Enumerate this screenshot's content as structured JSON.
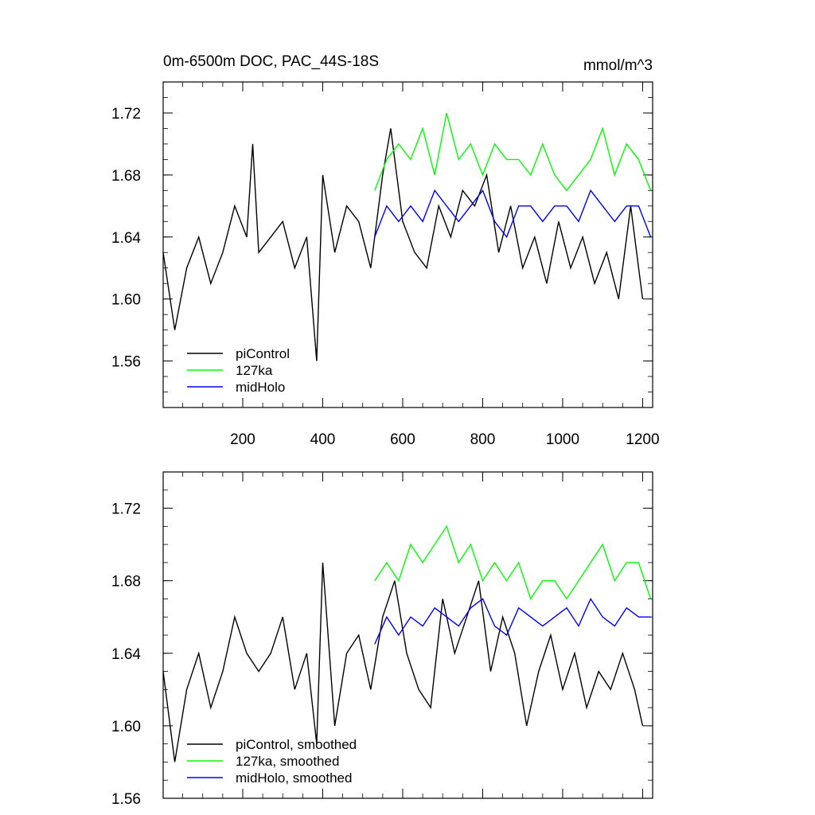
{
  "chart_data": [
    {
      "type": "line",
      "title": "0m-6500m DOC, PAC_44S-18S",
      "units": "mmol/m^3",
      "xlim": [
        1,
        1225
      ],
      "ylim": [
        1.53,
        1.74
      ],
      "xticks": [
        200,
        400,
        600,
        800,
        1000,
        1200
      ],
      "yticks": [
        1.56,
        1.6,
        1.64,
        1.68,
        1.72
      ],
      "ytick_labels": [
        "1.56",
        "1.60",
        "1.64",
        "1.68",
        "1.72"
      ],
      "xtick_labels": [
        "200",
        "400",
        "600",
        "800",
        "1000",
        "1200"
      ],
      "legend_position": "lower-left",
      "series": [
        {
          "name": "piControl",
          "color": "#000000",
          "x": [
            1,
            30,
            60,
            90,
            120,
            150,
            180,
            210,
            225,
            240,
            270,
            300,
            330,
            360,
            385,
            400,
            430,
            460,
            490,
            520,
            550,
            570,
            600,
            630,
            660,
            690,
            720,
            750,
            780,
            810,
            840,
            870,
            900,
            930,
            960,
            990,
            1020,
            1050,
            1080,
            1110,
            1140,
            1170,
            1200
          ],
          "values": [
            1.63,
            1.58,
            1.62,
            1.64,
            1.61,
            1.63,
            1.66,
            1.64,
            1.7,
            1.63,
            1.64,
            1.65,
            1.62,
            1.64,
            1.56,
            1.68,
            1.63,
            1.66,
            1.65,
            1.62,
            1.68,
            1.71,
            1.65,
            1.63,
            1.62,
            1.66,
            1.64,
            1.67,
            1.66,
            1.68,
            1.63,
            1.66,
            1.62,
            1.64,
            1.61,
            1.65,
            1.62,
            1.64,
            1.61,
            1.63,
            1.6,
            1.66,
            1.6
          ]
        },
        {
          "name": "127ka",
          "color": "#00ff00",
          "x": [
            530,
            560,
            590,
            620,
            650,
            680,
            710,
            740,
            770,
            800,
            830,
            860,
            890,
            920,
            950,
            980,
            1010,
            1040,
            1070,
            1100,
            1130,
            1160,
            1190,
            1220
          ],
          "values": [
            1.67,
            1.69,
            1.7,
            1.69,
            1.71,
            1.68,
            1.72,
            1.69,
            1.7,
            1.68,
            1.7,
            1.69,
            1.69,
            1.68,
            1.7,
            1.68,
            1.67,
            1.68,
            1.69,
            1.71,
            1.68,
            1.7,
            1.69,
            1.67
          ]
        },
        {
          "name": "midHolo",
          "color": "#0000ff",
          "x": [
            530,
            560,
            590,
            620,
            650,
            680,
            710,
            740,
            770,
            800,
            830,
            860,
            890,
            920,
            950,
            980,
            1010,
            1040,
            1070,
            1100,
            1130,
            1160,
            1190,
            1220
          ],
          "values": [
            1.64,
            1.66,
            1.65,
            1.66,
            1.65,
            1.67,
            1.66,
            1.65,
            1.66,
            1.67,
            1.65,
            1.64,
            1.66,
            1.66,
            1.65,
            1.66,
            1.66,
            1.65,
            1.67,
            1.66,
            1.65,
            1.66,
            1.66,
            1.64
          ]
        }
      ]
    },
    {
      "type": "line",
      "xlim": [
        1,
        1225
      ],
      "ylim": [
        1.56,
        1.74
      ],
      "yticks": [
        1.56,
        1.6,
        1.64,
        1.68,
        1.72
      ],
      "ytick_labels": [
        "1.56",
        "1.60",
        "1.64",
        "1.68",
        "1.72"
      ],
      "xticks": [
        200,
        400,
        600,
        800,
        1000,
        1200
      ],
      "legend_position": "lower-left",
      "series": [
        {
          "name": "piControl, smoothed",
          "color": "#000000",
          "x": [
            1,
            30,
            60,
            90,
            120,
            150,
            180,
            210,
            240,
            270,
            300,
            330,
            360,
            385,
            400,
            430,
            460,
            490,
            520,
            550,
            580,
            610,
            640,
            670,
            700,
            730,
            760,
            790,
            820,
            850,
            880,
            910,
            940,
            970,
            1000,
            1030,
            1060,
            1090,
            1120,
            1150,
            1180,
            1200
          ],
          "values": [
            1.63,
            1.58,
            1.62,
            1.64,
            1.61,
            1.63,
            1.66,
            1.64,
            1.63,
            1.64,
            1.66,
            1.62,
            1.64,
            1.59,
            1.69,
            1.6,
            1.64,
            1.65,
            1.62,
            1.66,
            1.68,
            1.64,
            1.62,
            1.61,
            1.67,
            1.64,
            1.66,
            1.68,
            1.63,
            1.66,
            1.64,
            1.6,
            1.63,
            1.65,
            1.62,
            1.64,
            1.61,
            1.63,
            1.62,
            1.64,
            1.62,
            1.6
          ]
        },
        {
          "name": "127ka, smoothed",
          "color": "#00ff00",
          "x": [
            530,
            560,
            590,
            620,
            650,
            680,
            710,
            740,
            770,
            800,
            830,
            860,
            890,
            920,
            950,
            980,
            1010,
            1040,
            1070,
            1100,
            1130,
            1160,
            1190,
            1220
          ],
          "values": [
            1.68,
            1.69,
            1.68,
            1.7,
            1.69,
            1.7,
            1.71,
            1.69,
            1.7,
            1.68,
            1.69,
            1.68,
            1.69,
            1.67,
            1.68,
            1.68,
            1.67,
            1.68,
            1.69,
            1.7,
            1.68,
            1.69,
            1.69,
            1.67
          ]
        },
        {
          "name": "midHolo, smoothed",
          "color": "#0000ff",
          "x": [
            530,
            560,
            590,
            620,
            650,
            680,
            710,
            740,
            770,
            800,
            830,
            860,
            890,
            920,
            950,
            980,
            1010,
            1040,
            1070,
            1100,
            1130,
            1160,
            1190,
            1220
          ],
          "values": [
            1.645,
            1.66,
            1.65,
            1.66,
            1.655,
            1.665,
            1.66,
            1.655,
            1.665,
            1.67,
            1.655,
            1.65,
            1.665,
            1.66,
            1.655,
            1.66,
            1.665,
            1.655,
            1.67,
            1.66,
            1.655,
            1.665,
            1.66,
            1.66
          ]
        }
      ]
    }
  ]
}
